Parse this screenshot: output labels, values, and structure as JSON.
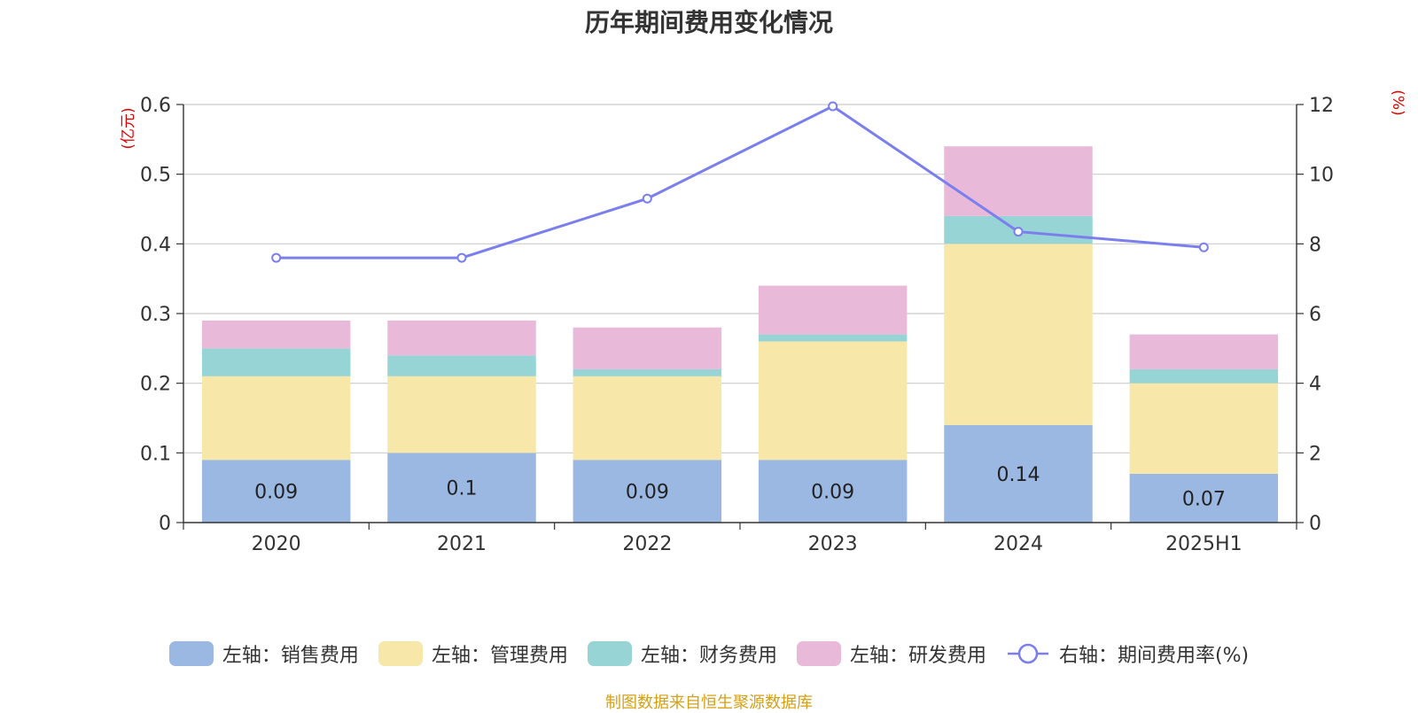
{
  "chart_data": {
    "type": "bar",
    "title": "历年期间费用变化情况",
    "categories": [
      "2020",
      "2021",
      "2022",
      "2023",
      "2024",
      "2025H1"
    ],
    "left_axis_label": "(亿元)",
    "right_axis_label": "(%)",
    "left_ylim": [
      0,
      0.6
    ],
    "left_ticks": [
      "0",
      "0.1",
      "0.2",
      "0.3",
      "0.4",
      "0.5",
      "0.6"
    ],
    "right_ylim": [
      0,
      12
    ],
    "right_ticks": [
      "0",
      "2",
      "4",
      "6",
      "8",
      "10",
      "12"
    ],
    "grid": true,
    "legend_position": "bottom",
    "series": [
      {
        "name": "左轴：销售费用",
        "type": "bar",
        "axis": "left",
        "color": "#9BB8E3",
        "values": [
          0.09,
          0.1,
          0.09,
          0.09,
          0.14,
          0.07
        ],
        "data_labels": [
          "0.09",
          "0.1",
          "0.09",
          "0.09",
          "0.14",
          "0.07"
        ]
      },
      {
        "name": "左轴：管理费用",
        "type": "bar",
        "axis": "left",
        "color": "#F7E7A9",
        "values": [
          0.12,
          0.11,
          0.12,
          0.17,
          0.26,
          0.13
        ]
      },
      {
        "name": "左轴：财务费用",
        "type": "bar",
        "axis": "left",
        "color": "#97D4D5",
        "values": [
          0.04,
          0.03,
          0.01,
          0.01,
          0.04,
          0.02
        ]
      },
      {
        "name": "左轴：研发费用",
        "type": "bar",
        "axis": "left",
        "color": "#E8B9D9",
        "values": [
          0.04,
          0.05,
          0.06,
          0.07,
          0.1,
          0.05
        ]
      },
      {
        "name": "右轴：期间费用率(%)",
        "type": "line",
        "axis": "right",
        "color": "#7B7FEE",
        "values": [
          7.6,
          7.6,
          9.3,
          11.95,
          8.35,
          7.9
        ]
      }
    ]
  },
  "source_note": "制图数据来自恒生聚源数据库"
}
